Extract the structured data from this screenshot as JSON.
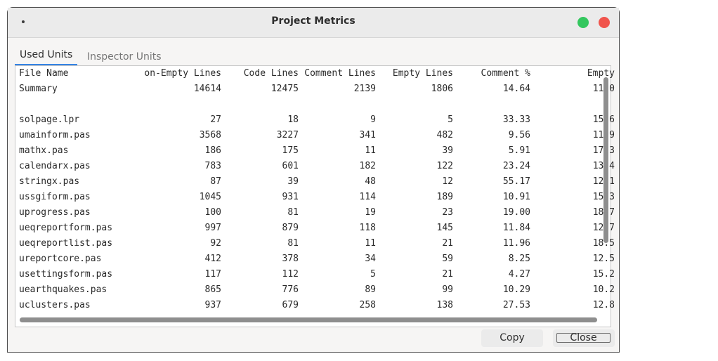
{
  "window": {
    "title": "Project Metrics",
    "colors": {
      "maximize": "#33c75e",
      "close": "#f0544c",
      "tab_accent": "#3584e4"
    }
  },
  "tabs": [
    {
      "label": "Used Units",
      "active": true
    },
    {
      "label": "Inspector Units",
      "active": false
    }
  ],
  "table": {
    "columns": [
      "File Name",
      "on-Empty Lines",
      "Code Lines",
      "Comment Lines",
      "Empty Lines",
      "Comment %",
      "Empty"
    ],
    "rows": [
      [
        "Summary",
        "14614",
        "12475",
        "2139",
        "1806",
        "14.64",
        "11.0"
      ],
      [
        "",
        "",
        "",
        "",
        "",
        "",
        ""
      ],
      [
        "solpage.lpr",
        "27",
        "18",
        "9",
        "5",
        "33.33",
        "15.6"
      ],
      [
        "umainform.pas",
        "3568",
        "3227",
        "341",
        "482",
        "9.56",
        "11.9"
      ],
      [
        "mathx.pas",
        "186",
        "175",
        "11",
        "39",
        "5.91",
        "17.3"
      ],
      [
        "calendarx.pas",
        "783",
        "601",
        "182",
        "122",
        "23.24",
        "13.4"
      ],
      [
        "stringx.pas",
        "87",
        "39",
        "48",
        "12",
        "55.17",
        "12.1"
      ],
      [
        "ussgiform.pas",
        "1045",
        "931",
        "114",
        "189",
        "10.91",
        "15.3"
      ],
      [
        "uprogress.pas",
        "100",
        "81",
        "19",
        "23",
        "19.00",
        "18.7"
      ],
      [
        "ueqreportform.pas",
        "997",
        "879",
        "118",
        "145",
        "11.84",
        "12.7"
      ],
      [
        "ueqreportlist.pas",
        "92",
        "81",
        "11",
        "21",
        "11.96",
        "18.5"
      ],
      [
        "ureportcore.pas",
        "412",
        "378",
        "34",
        "59",
        "8.25",
        "12.5"
      ],
      [
        "usettingsform.pas",
        "117",
        "112",
        "5",
        "21",
        "4.27",
        "15.2"
      ],
      [
        "uearthquakes.pas",
        "865",
        "776",
        "89",
        "99",
        "10.29",
        "10.2"
      ],
      [
        "uclusters.pas",
        "937",
        "679",
        "258",
        "138",
        "27.53",
        "12.8"
      ]
    ]
  },
  "buttons": {
    "copy": "Copy",
    "close": "Close"
  },
  "icons": {
    "menu": "dot-menu-icon"
  }
}
